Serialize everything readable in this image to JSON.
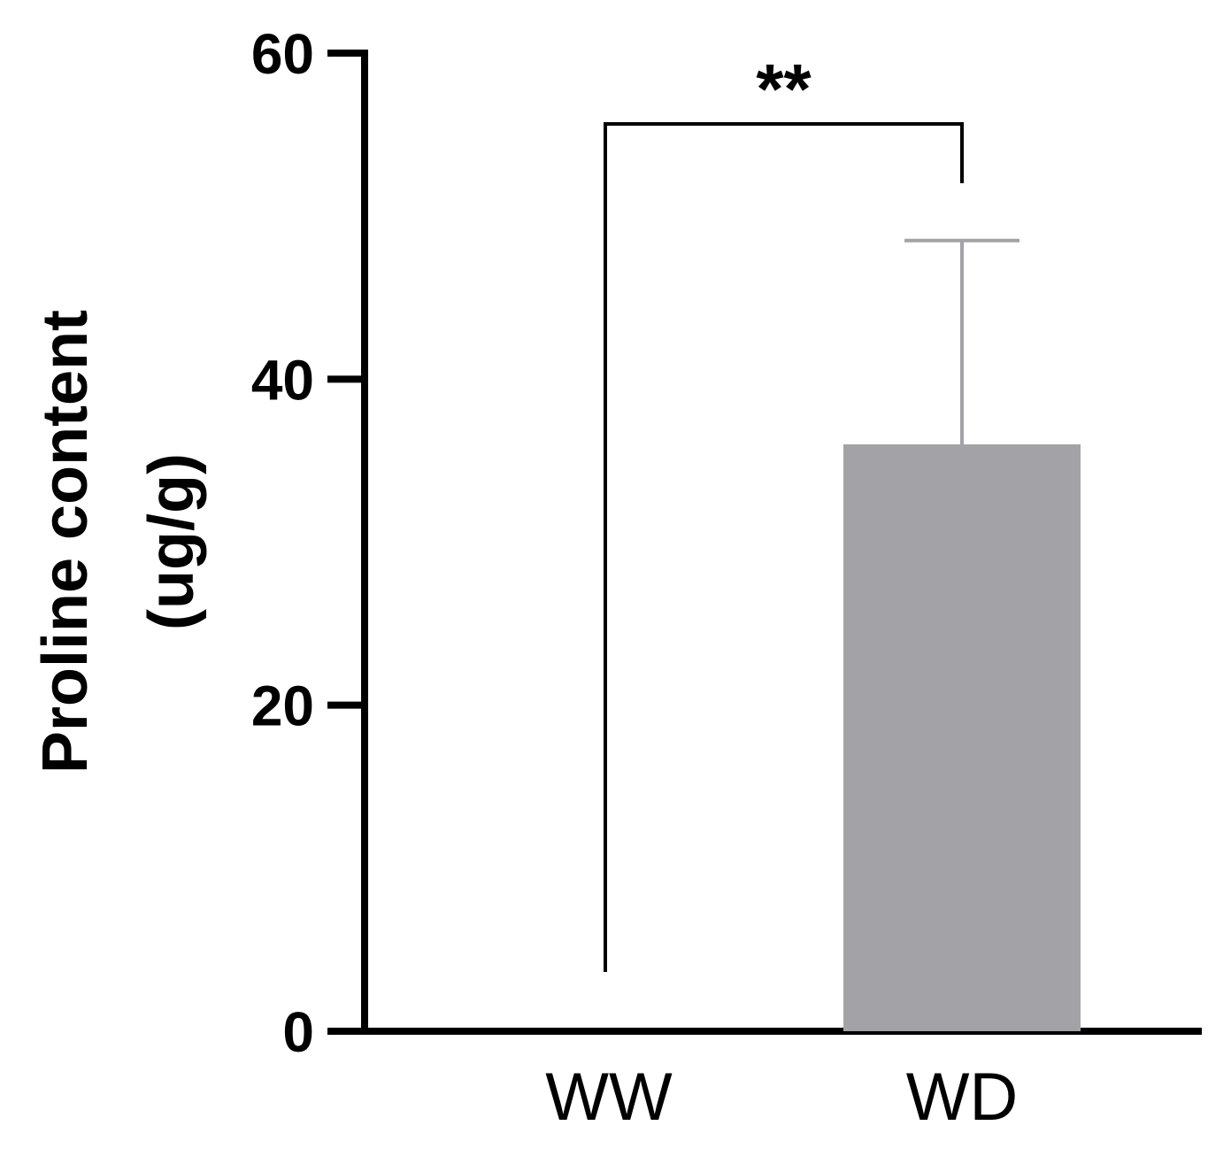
{
  "chart_data": {
    "type": "bar",
    "categories": [
      "WW",
      "WD"
    ],
    "values": [
      0,
      36
    ],
    "error_bars": [
      0,
      12.5
    ],
    "ylabel_line1": "Proline content",
    "ylabel_line2": "(ug/g)",
    "xlabel": "",
    "title": "",
    "ylim": [
      0,
      60
    ],
    "yticks": [
      0,
      20,
      40,
      60
    ],
    "ytick_labels": [
      "0",
      "20",
      "40",
      "60"
    ],
    "grid": false,
    "legend": "none",
    "significance": {
      "label": "**",
      "between": [
        "WW",
        "WD"
      ]
    },
    "colors": {
      "bar_fill": "#a3a2a7",
      "error_bar": "#a3a2a7",
      "axis": "#000000",
      "bracket": "#000000"
    }
  }
}
